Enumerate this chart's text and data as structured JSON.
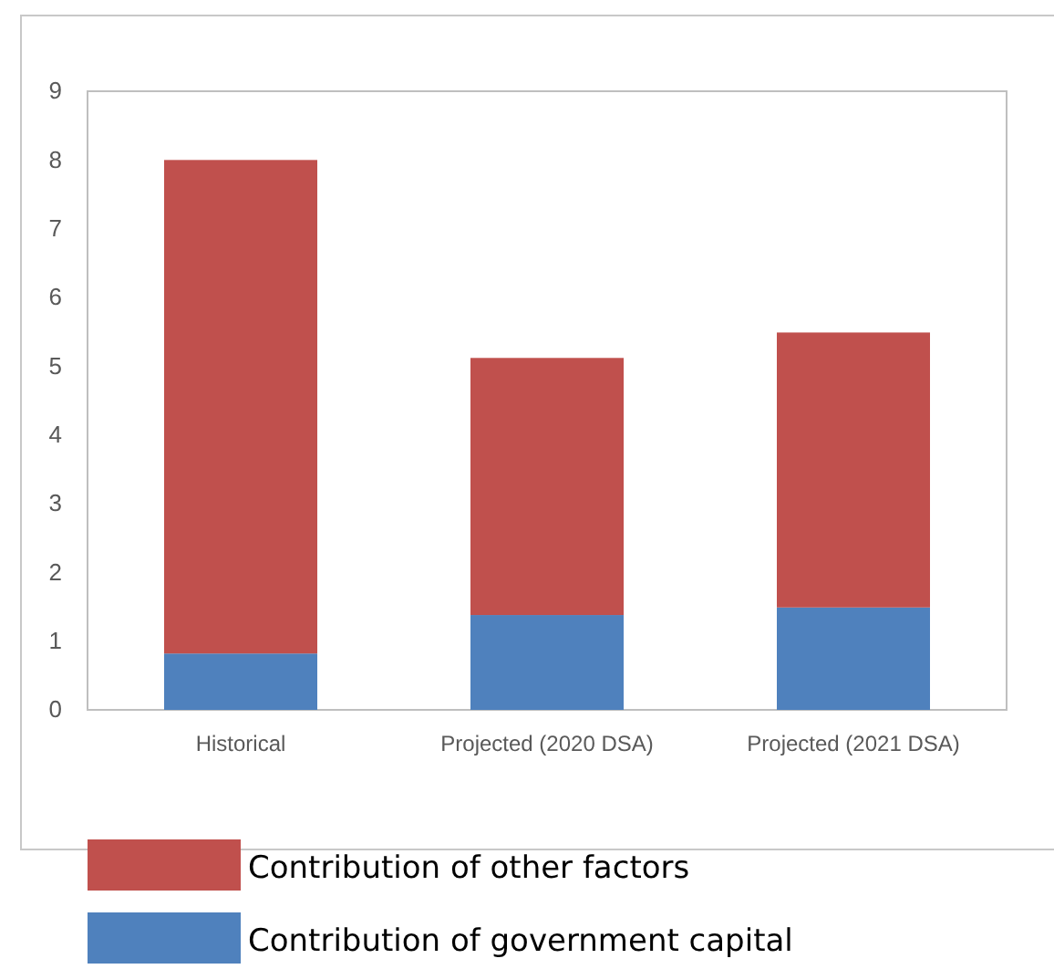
{
  "chart_data": {
    "type": "bar",
    "stacked": true,
    "categories": [
      "Historical",
      "Projected (2020 DSA)",
      "Projected (2021 DSA)"
    ],
    "series": [
      {
        "name": "Contribution of government capital",
        "color": "#4f81bd",
        "values": [
          0.82,
          1.38,
          1.49
        ]
      },
      {
        "name": "Contribution of other factors",
        "color": "#c0504d",
        "values": [
          7.18,
          3.74,
          4.0
        ]
      }
    ],
    "ylim": [
      0,
      9
    ],
    "yticks": [
      0,
      1,
      2,
      3,
      4,
      5,
      6,
      7,
      8,
      9
    ],
    "grid": false,
    "legend": "bottom"
  }
}
